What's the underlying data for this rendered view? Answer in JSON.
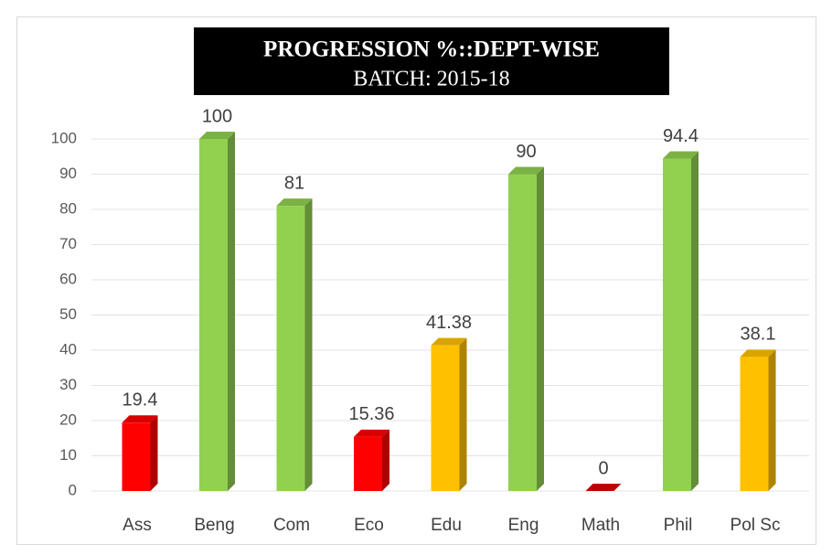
{
  "chart_data": {
    "type": "bar3d",
    "title": "PROGRESSION %::DEPT-WISE",
    "subtitle": "BATCH: 2015-18",
    "categories": [
      "Ass",
      "Beng",
      "Com",
      "Eco",
      "Edu",
      "Eng",
      "Math",
      "Phil",
      "Pol Sc"
    ],
    "values": [
      19.4,
      100,
      81,
      15.36,
      41.38,
      90,
      0,
      94.4,
      38.1
    ],
    "colors": [
      "#ff0000",
      "#92d050",
      "#92d050",
      "#ff0000",
      "#ffc000",
      "#92d050",
      "#ff0000",
      "#92d050",
      "#ffc000"
    ],
    "ylim": [
      0,
      100
    ],
    "yticks": [
      0,
      10,
      20,
      30,
      40,
      50,
      60,
      70,
      80,
      90,
      100
    ],
    "grid": true
  }
}
